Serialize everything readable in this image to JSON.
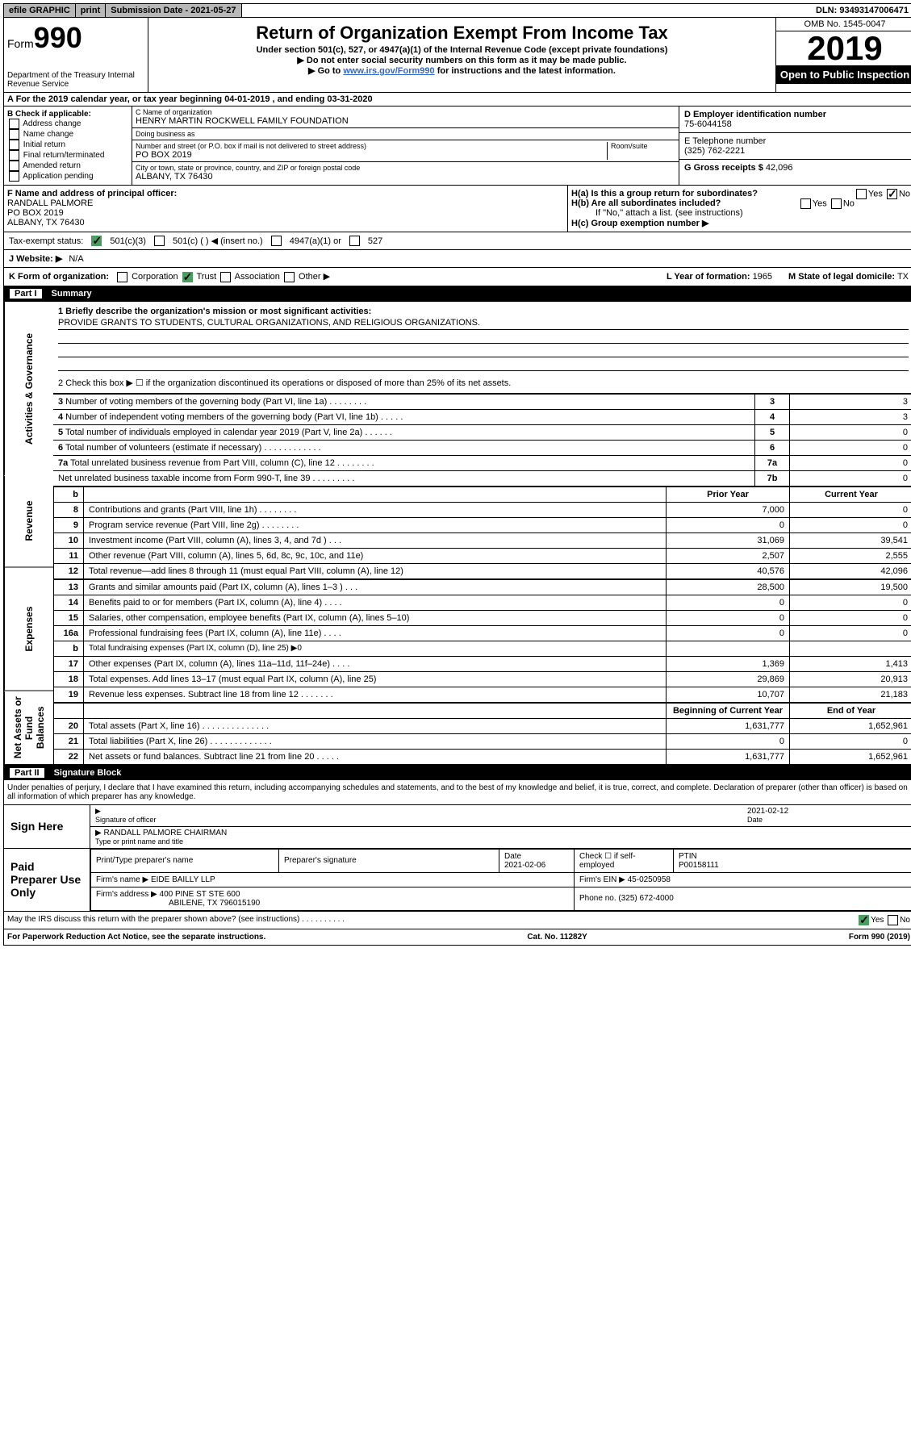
{
  "topbar": {
    "efile": "efile GRAPHIC",
    "print": "print",
    "sub_lbl": "Submission Date - 2021-05-27",
    "dln": "DLN: 93493147006471"
  },
  "header": {
    "form_word": "Form",
    "form_num": "990",
    "title": "Return of Organization Exempt From Income Tax",
    "sub1": "Under section 501(c), 527, or 4947(a)(1) of the Internal Revenue Code (except private foundations)",
    "sub2": "▶ Do not enter social security numbers on this form as it may be made public.",
    "sub3_pre": "▶ Go to ",
    "sub3_link": "www.irs.gov/Form990",
    "sub3_post": " for instructions and the latest information.",
    "omb": "OMB No. 1545-0047",
    "year": "2019",
    "open": "Open to Public Inspection",
    "dept": "Department of the Treasury\nInternal Revenue Service"
  },
  "a_line": "A For the 2019 calendar year, or tax year beginning 04-01-2019     , and ending 03-31-2020",
  "b": {
    "header": "B Check if applicable:",
    "items": [
      "Address change",
      "Name change",
      "Initial return",
      "Final return/terminated",
      "Amended return",
      "Application pending"
    ]
  },
  "c": {
    "name_lbl": "C Name of organization",
    "name": "HENRY MARTIN ROCKWELL FAMILY FOUNDATION",
    "dba_lbl": "Doing business as",
    "addr_lbl": "Number and street (or P.O. box if mail is not delivered to street address)",
    "room_lbl": "Room/suite",
    "addr": "PO BOX 2019",
    "city_lbl": "City or town, state or province, country, and ZIP or foreign postal code",
    "city": "ALBANY, TX  76430"
  },
  "d": {
    "lbl": "D Employer identification number",
    "val": "75-6044158"
  },
  "e": {
    "lbl": "E Telephone number",
    "val": "(325) 762-2221"
  },
  "g": {
    "lbl": "G Gross receipts $",
    "val": "42,096"
  },
  "f": {
    "lbl": "F  Name and address of principal officer:",
    "name": "RANDALL PALMORE",
    "addr1": "PO BOX 2019",
    "addr2": "ALBANY, TX  76430"
  },
  "h": {
    "a_lbl": "H(a)  Is this a group return for subordinates?",
    "b_lbl": "H(b)  Are all subordinates included?",
    "b_note": "If \"No,\" attach a list. (see instructions)",
    "c_lbl": "H(c)  Group exemption number ▶",
    "yes": "Yes",
    "no": "No"
  },
  "status": {
    "lbl": "Tax-exempt status:",
    "o1": "501(c)(3)",
    "o2": "501(c) (  ) ◀ (insert no.)",
    "o3": "4947(a)(1) or",
    "o4": "527"
  },
  "website": {
    "lbl": "J   Website: ▶",
    "val": "N/A"
  },
  "k": {
    "lbl": "K Form of organization:",
    "opts": [
      "Corporation",
      "Trust",
      "Association",
      "Other ▶"
    ],
    "l_lbl": "L Year of formation:",
    "l_val": "1965",
    "m_lbl": "M State of legal domicile:",
    "m_val": "TX"
  },
  "part1": {
    "num": "Part I",
    "title": "Summary"
  },
  "summary": {
    "q1_lbl": "1  Briefly describe the organization's mission or most significant activities:",
    "q1_val": "PROVIDE GRANTS TO STUDENTS, CULTURAL ORGANIZATIONS, AND RELIGIOUS ORGANIZATIONS.",
    "q2": "2   Check this box ▶ ☐  if the organization discontinued its operations or disposed of more than 25% of its net assets.",
    "lines_a": [
      {
        "n": "3",
        "t": "Number of voting members of the governing body (Part VI, line 1a)   .   .   .   .   .   .   .   .",
        "b": "3",
        "v": "3"
      },
      {
        "n": "4",
        "t": "Number of independent voting members of the governing body (Part VI, line 1b)   .   .   .   .   .",
        "b": "4",
        "v": "3"
      },
      {
        "n": "5",
        "t": "Total number of individuals employed in calendar year 2019 (Part V, line 2a)   .   .   .   .   .   .",
        "b": "5",
        "v": "0"
      },
      {
        "n": "6",
        "t": "Total number of volunteers (estimate if necessary)   .   .   .   .   .   .   .   .   .   .   .   .",
        "b": "6",
        "v": "0"
      },
      {
        "n": "7a",
        "t": "Total unrelated business revenue from Part VIII, column (C), line 12   .   .   .   .   .   .   .   .",
        "b": "7a",
        "v": "0"
      },
      {
        "n": "",
        "t": "Net unrelated business taxable income from Form 990-T, line 39   .   .   .   .   .   .   .   .   .",
        "b": "7b",
        "v": "0"
      }
    ],
    "vtabs": {
      "gov": "Activities & Governance",
      "rev": "Revenue",
      "exp": "Expenses",
      "net": "Net Assets or Fund Balances"
    },
    "col_prior": "Prior Year",
    "col_current": "Current Year",
    "col_beg": "Beginning of Current Year",
    "col_end": "End of Year",
    "b_line": "b",
    "revenue": [
      {
        "n": "8",
        "t": "Contributions and grants (Part VIII, line 1h)   .   .   .   .   .   .   .   .",
        "p": "7,000",
        "c": "0"
      },
      {
        "n": "9",
        "t": "Program service revenue (Part VIII, line 2g)   .   .   .   .   .   .   .   .",
        "p": "0",
        "c": "0"
      },
      {
        "n": "10",
        "t": "Investment income (Part VIII, column (A), lines 3, 4, and 7d )   .   .   .",
        "p": "31,069",
        "c": "39,541"
      },
      {
        "n": "11",
        "t": "Other revenue (Part VIII, column (A), lines 5, 6d, 8c, 9c, 10c, and 11e)",
        "p": "2,507",
        "c": "2,555"
      },
      {
        "n": "12",
        "t": "Total revenue—add lines 8 through 11 (must equal Part VIII, column (A), line 12)",
        "p": "40,576",
        "c": "42,096"
      }
    ],
    "expenses": [
      {
        "n": "13",
        "t": "Grants and similar amounts paid (Part IX, column (A), lines 1–3 )   .   .   .",
        "p": "28,500",
        "c": "19,500"
      },
      {
        "n": "14",
        "t": "Benefits paid to or for members (Part IX, column (A), line 4)   .   .   .   .",
        "p": "0",
        "c": "0"
      },
      {
        "n": "15",
        "t": "Salaries, other compensation, employee benefits (Part IX, column (A), lines 5–10)",
        "p": "0",
        "c": "0"
      },
      {
        "n": "16a",
        "t": "Professional fundraising fees (Part IX, column (A), line 11e)   .   .   .   .",
        "p": "0",
        "c": "0"
      },
      {
        "n": "b",
        "t": "Total fundraising expenses (Part IX, column (D), line 25) ▶0",
        "shade": true
      },
      {
        "n": "17",
        "t": "Other expenses (Part IX, column (A), lines 11a–11d, 11f–24e)   .   .   .   .",
        "p": "1,369",
        "c": "1,413"
      },
      {
        "n": "18",
        "t": "Total expenses. Add lines 13–17 (must equal Part IX, column (A), line 25)",
        "p": "29,869",
        "c": "20,913"
      },
      {
        "n": "19",
        "t": "Revenue less expenses. Subtract line 18 from line 12   .   .   .   .   .   .   .",
        "p": "10,707",
        "c": "21,183"
      }
    ],
    "netassets": [
      {
        "n": "20",
        "t": "Total assets (Part X, line 16)   .   .   .   .   .   .   .   .   .   .   .   .   .   .",
        "p": "1,631,777",
        "c": "1,652,961"
      },
      {
        "n": "21",
        "t": "Total liabilities (Part X, line 26)   .   .   .   .   .   .   .   .   .   .   .   .   .",
        "p": "0",
        "c": "0"
      },
      {
        "n": "22",
        "t": "Net assets or fund balances. Subtract line 21 from line 20   .   .   .   .   .",
        "p": "1,631,777",
        "c": "1,652,961"
      }
    ]
  },
  "part2": {
    "num": "Part II",
    "title": "Signature Block"
  },
  "sig": {
    "decl": "Under penalties of perjury, I declare that I have examined this return, including accompanying schedules and statements, and to the best of my knowledge and belief, it is true, correct, and complete. Declaration of preparer (other than officer) is based on all information of which preparer has any knowledge.",
    "sign_here": "Sign Here",
    "sig_officer": "Signature of officer",
    "date1": "2021-02-12",
    "date_lbl": "Date",
    "officer_name": "RANDALL PALMORE  CHAIRMAN",
    "type_name": "Type or print name and title",
    "paid": "Paid Preparer Use Only",
    "prep_name_lbl": "Print/Type preparer's name",
    "prep_sig_lbl": "Preparer's signature",
    "date2_lbl": "Date",
    "date2": "2021-02-06",
    "check_lbl": "Check ☐ if self-employed",
    "ptin_lbl": "PTIN",
    "ptin": "P00158111",
    "firm_name_lbl": "Firm's name    ▶",
    "firm_name": "EIDE BAILLY LLP",
    "firm_ein_lbl": "Firm's EIN ▶",
    "firm_ein": "45-0250958",
    "firm_addr_lbl": "Firm's address ▶",
    "firm_addr": "400 PINE ST STE 600",
    "firm_city": "ABILENE, TX  796015190",
    "phone_lbl": "Phone no.",
    "phone": "(325) 672-4000"
  },
  "footer": {
    "q": "May the IRS discuss this return with the preparer shown above? (see instructions)    .    .    .    .    .    .    .    .    .    .",
    "yes": "Yes",
    "no": "No",
    "pra": "For Paperwork Reduction Act Notice, see the separate instructions.",
    "cat": "Cat. No. 11282Y",
    "form": "Form 990 (2019)"
  }
}
